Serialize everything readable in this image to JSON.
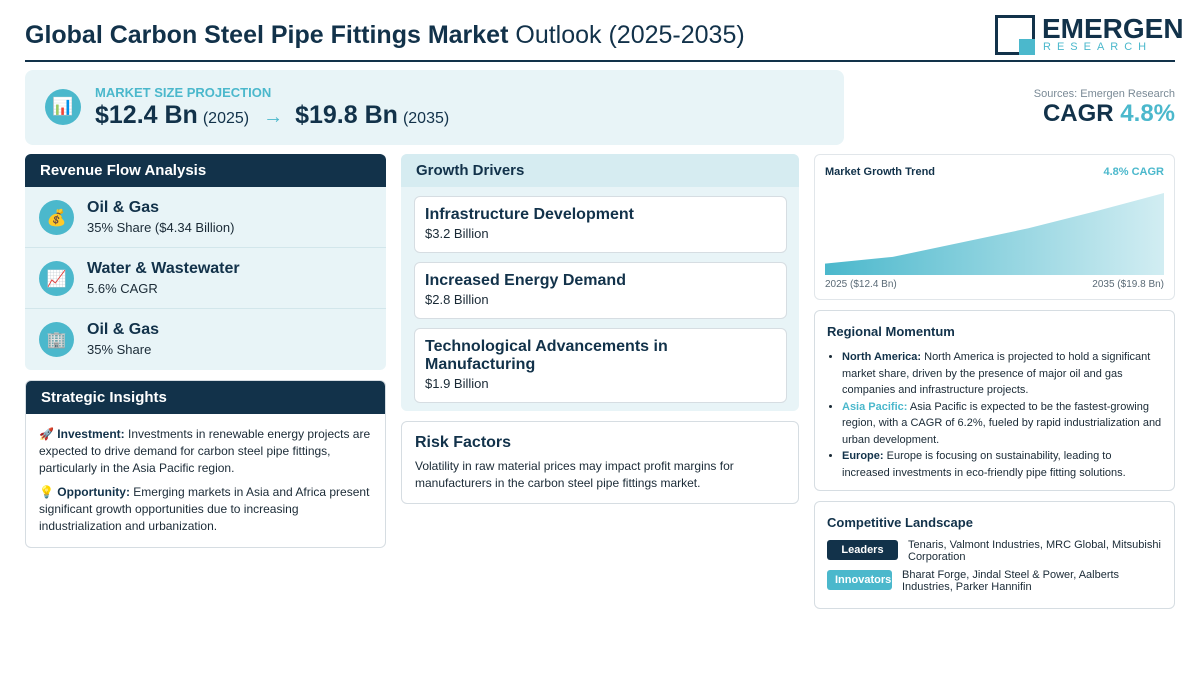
{
  "header": {
    "title_bold": "Global Carbon Steel Pipe Fittings Market",
    "title_rest": "Outlook (2025-2035)",
    "logo_name": "EMERGEN",
    "logo_sub": "RESEARCH"
  },
  "projection": {
    "label": "MARKET SIZE PROJECTION",
    "icon": "bar-chart-icon",
    "start_value": "$12.4 Bn",
    "start_year": "(2025)",
    "arrow": "→",
    "end_value": "$19.8 Bn",
    "end_year": "(2035)"
  },
  "sources": "Sources: Emergen Research",
  "cagr": {
    "label": "CAGR",
    "value": "4.8%"
  },
  "revenue_flow": {
    "title": "Revenue Flow Analysis",
    "items": [
      {
        "icon": "money-bag-icon",
        "glyph": "💰",
        "name": "Oil & Gas",
        "value": "35% Share ($4.34 Billion)"
      },
      {
        "icon": "trend-chart-icon",
        "glyph": "📈",
        "name": "Water & Wastewater",
        "value": "5.6% CAGR"
      },
      {
        "icon": "building-icon",
        "glyph": "🏢",
        "name": "Oil & Gas",
        "value": "35% Share"
      }
    ]
  },
  "strategic": {
    "title": "Strategic Insights",
    "items": [
      {
        "glyph": "🚀",
        "label": "Investment:",
        "text": "Investments in renewable energy projects are expected to drive demand for carbon steel pipe fittings, particularly in the Asia Pacific region."
      },
      {
        "glyph": "💡",
        "label": "Opportunity:",
        "text": "Emerging markets in Asia and Africa present significant growth opportunities due to increasing industrialization and urbanization."
      }
    ]
  },
  "drivers": {
    "title": "Growth Drivers",
    "items": [
      {
        "name": "Infrastructure Development",
        "value": "$3.2 Billion"
      },
      {
        "name": "Increased Energy Demand",
        "value": "$2.8 Billion"
      },
      {
        "name": "Technological Advancements in Manufacturing",
        "value": "$1.9 Billion"
      }
    ]
  },
  "risk": {
    "title": "Risk Factors",
    "text": "Volatility in raw material prices may impact profit margins for manufacturers in the carbon steel pipe fittings market."
  },
  "trend": {
    "title": "Market Growth Trend",
    "cagr_label": "4.8% CAGR",
    "start_label": "2025 ($12.4 Bn)",
    "end_label": "2035 ($19.8 Bn)",
    "colors": {
      "top": "#d4edf3",
      "bottom": "#4bb8cc"
    }
  },
  "chart_data": {
    "type": "area",
    "x": [
      2025,
      2027,
      2029,
      2031,
      2033,
      2035
    ],
    "values": [
      12.4,
      13.1,
      14.6,
      16.1,
      17.9,
      19.8
    ],
    "title": "Market Growth Trend",
    "xlabel": "",
    "ylabel": "",
    "grid": false
  },
  "regional": {
    "title": "Regional Momentum",
    "items": [
      {
        "region": "North America:",
        "highlight": false,
        "text": "North America is projected to hold a significant market share, driven by the presence of major oil and gas companies and infrastructure projects."
      },
      {
        "region": "Asia Pacific:",
        "highlight": true,
        "text": "Asia Pacific is expected to be the fastest-growing region, with a CAGR of 6.2%, fueled by rapid industrialization and urban development."
      },
      {
        "region": "Europe:",
        "highlight": false,
        "text": "Europe is focusing on sustainability, leading to increased investments in eco-friendly pipe fitting solutions."
      }
    ]
  },
  "competitive": {
    "title": "Competitive Landscape",
    "leaders_label": "Leaders",
    "leaders": "Tenaris, Valmont Industries, MRC Global, Mitsubishi Corporation",
    "innovators_label": "Innovators",
    "innovators": "Bharat Forge, Jindal Steel & Power, Aalberts Industries, Parker Hannifin"
  },
  "colors": {
    "primary": "#12324a",
    "accent": "#4bb8cc",
    "panel_bg": "#e8f4f7"
  }
}
